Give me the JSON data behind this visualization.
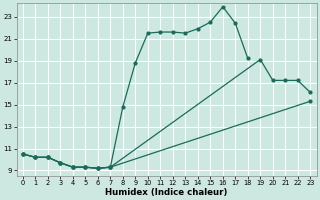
{
  "title": "",
  "xlabel": "Humidex (Indice chaleur)",
  "background_color": "#cce8e0",
  "grid_color": "#ffffff",
  "line_color": "#1a6b5a",
  "xlim": [
    -0.5,
    23.5
  ],
  "ylim": [
    8.5,
    24.2
  ],
  "xticks": [
    0,
    1,
    2,
    3,
    4,
    5,
    6,
    7,
    8,
    9,
    10,
    11,
    12,
    13,
    14,
    15,
    16,
    17,
    18,
    19,
    20,
    21,
    22,
    23
  ],
  "yticks": [
    9,
    11,
    13,
    15,
    17,
    19,
    21,
    23
  ],
  "line1_x": [
    0,
    1,
    2,
    3,
    4,
    5,
    6,
    7,
    8,
    9,
    10,
    11,
    12,
    13,
    14,
    15,
    16,
    17,
    18
  ],
  "line1_y": [
    10.5,
    10.2,
    10.2,
    9.7,
    9.3,
    9.3,
    9.2,
    9.3,
    14.8,
    18.8,
    21.5,
    21.6,
    21.6,
    21.5,
    21.9,
    22.5,
    23.9,
    22.4,
    19.2
  ],
  "line2_x": [
    0,
    1,
    2,
    3,
    4,
    5,
    6,
    7,
    19,
    20,
    21,
    22,
    23
  ],
  "line2_y": [
    10.5,
    10.2,
    10.2,
    9.7,
    9.3,
    9.3,
    9.2,
    9.3,
    19.1,
    17.2,
    17.2,
    17.2,
    16.1
  ],
  "line3_x": [
    0,
    1,
    2,
    3,
    4,
    5,
    6,
    7,
    23
  ],
  "line3_y": [
    10.5,
    10.2,
    10.2,
    9.7,
    9.3,
    9.3,
    9.2,
    9.3,
    15.3
  ]
}
